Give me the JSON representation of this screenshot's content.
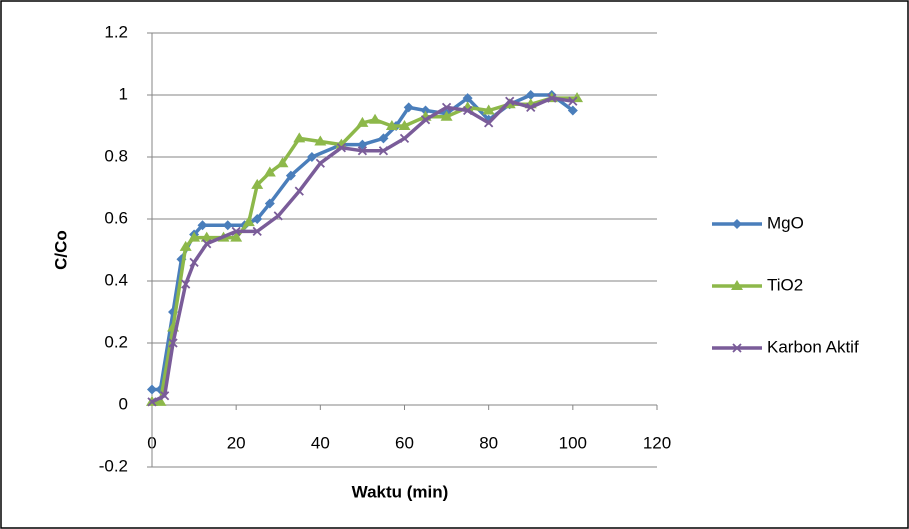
{
  "chart_data": {
    "type": "line",
    "x_label": "Waktu (min)",
    "y_label": "C/Co",
    "xlim": [
      0,
      120
    ],
    "xticks": [
      0,
      20,
      40,
      60,
      80,
      100,
      120
    ],
    "ylim": [
      -0.2,
      1.2
    ],
    "yticks": [
      -0.2,
      0,
      0.2,
      0.4,
      0.6,
      0.8,
      1,
      1.2
    ],
    "grid": true,
    "legend": "right",
    "series": [
      {
        "name": "MgO",
        "color": "#4a7ebb",
        "marker": "diamond",
        "x": [
          0,
          2,
          5,
          7,
          10,
          12,
          18,
          22,
          25,
          28,
          33,
          38,
          45,
          50,
          55,
          58,
          61,
          65,
          70,
          75,
          80,
          85,
          90,
          95,
          100
        ],
        "values": [
          0.05,
          0.05,
          0.3,
          0.47,
          0.55,
          0.58,
          0.58,
          0.58,
          0.6,
          0.65,
          0.74,
          0.8,
          0.84,
          0.84,
          0.86,
          0.9,
          0.96,
          0.95,
          0.94,
          0.99,
          0.92,
          0.97,
          1.0,
          1.0,
          0.95
        ]
      },
      {
        "name": "TiO2",
        "color": "#8db84a",
        "marker": "triangle",
        "x": [
          0,
          2,
          5,
          8,
          10,
          13,
          17,
          20,
          23,
          25,
          28,
          31,
          35,
          40,
          45,
          50,
          53,
          57,
          60,
          65,
          70,
          75,
          80,
          85,
          90,
          95,
          101
        ],
        "values": [
          0.01,
          0.01,
          0.25,
          0.51,
          0.54,
          0.54,
          0.54,
          0.54,
          0.59,
          0.71,
          0.75,
          0.78,
          0.86,
          0.85,
          0.84,
          0.91,
          0.92,
          0.9,
          0.9,
          0.93,
          0.93,
          0.96,
          0.95,
          0.97,
          0.97,
          0.99,
          0.99
        ]
      },
      {
        "name": "Karbon Aktif",
        "color": "#7a5c99",
        "marker": "cross",
        "x": [
          0,
          3,
          5,
          8,
          10,
          13,
          20,
          25,
          30,
          35,
          40,
          45,
          50,
          55,
          60,
          65,
          70,
          75,
          80,
          85,
          90,
          95,
          100
        ],
        "values": [
          0.01,
          0.03,
          0.2,
          0.39,
          0.46,
          0.52,
          0.56,
          0.56,
          0.61,
          0.69,
          0.78,
          0.83,
          0.82,
          0.82,
          0.86,
          0.92,
          0.96,
          0.95,
          0.91,
          0.98,
          0.96,
          0.99,
          0.98
        ]
      }
    ]
  }
}
